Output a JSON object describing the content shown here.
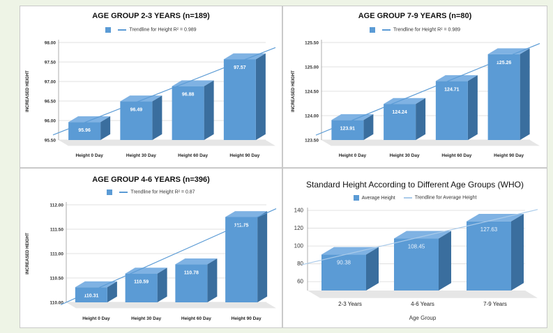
{
  "colors": {
    "bar_front": "#5b9bd5",
    "bar_top": "#7fb2e3",
    "bar_side": "#3a6e9e",
    "trend": "#5b9bd5",
    "trend_who": "#aacbea",
    "grid": "#d9d9d9",
    "floor": "#e6e6e6"
  },
  "chart_data": [
    {
      "type": "bar",
      "title": "AGE GROUP 2-3 YEARS (n=189)",
      "legend": {
        "series_label": "",
        "trend_label": "Trendline for Height  R² = 0.989"
      },
      "ylabel": "INCREASED HEIGHT",
      "xlabel": "",
      "categories": [
        "Height 0 Day",
        "Height 30 Day",
        "Height 60 Day",
        "Height 90 Day"
      ],
      "values": [
        95.96,
        96.49,
        96.88,
        97.57
      ],
      "value_labels": [
        "95.96",
        "96.49",
        "96.88",
        "97.57"
      ],
      "ylim": [
        95.5,
        98.0
      ],
      "yticks": [
        "95.50",
        "96.00",
        "96.50",
        "97.00",
        "97.50",
        "98.00"
      ],
      "trend_start": 95.63,
      "trend_end": 97.87,
      "grid": true
    },
    {
      "type": "bar",
      "title": "AGE GROUP 7-9 YEARS (n=80)",
      "legend": {
        "series_label": "",
        "trend_label": "Trendline for Height  R² = 0.989"
      },
      "ylabel": "INCREASED HEIGHT",
      "xlabel": "",
      "categories": [
        "Height 0 Day",
        "Height 30 Day",
        "Height 60 Day",
        "Height 90 Day"
      ],
      "values": [
        123.91,
        124.24,
        124.71,
        125.26
      ],
      "value_labels": [
        "123.91",
        "124.24",
        "124.71",
        "125.26"
      ],
      "ylim": [
        123.5,
        125.5
      ],
      "yticks": [
        "123.50",
        "124.00",
        "124.50",
        "125.00",
        "125.50"
      ],
      "trend_start": 123.6,
      "trend_end": 125.48,
      "grid": true
    },
    {
      "type": "bar",
      "title": "AGE GROUP 4-6 YEARS (n=396)",
      "legend": {
        "series_label": "",
        "trend_label": "Trendline for Height R² = 0.87"
      },
      "ylabel": "INCREASED HEIGHT",
      "xlabel": "",
      "categories": [
        "Height 0 Day",
        "Height 30 Day",
        "Height 60 Day",
        "Height 90 Day"
      ],
      "values": [
        110.31,
        110.59,
        110.78,
        111.75
      ],
      "value_labels": [
        "110.31",
        "110.59",
        "110.78",
        "111.75"
      ],
      "ylim": [
        110.0,
        112.0
      ],
      "yticks": [
        "110.00",
        "110.50",
        "111.00",
        "111.50",
        "112.00"
      ],
      "trend_start": 109.95,
      "trend_end": 111.92,
      "grid": true
    },
    {
      "type": "bar",
      "title": "Standard Height According to Different Age Groups (WHO)",
      "legend": {
        "series_label": "Average Height",
        "trend_label": "Trendline for Average Height"
      },
      "ylabel": "",
      "xlabel": "Age Group",
      "categories": [
        "2-3 Years",
        "4-6 Years",
        "7-9 Years"
      ],
      "values": [
        90.38,
        108.45,
        127.63
      ],
      "value_labels": [
        "90.38",
        "108.45",
        "127.63"
      ],
      "ylim": [
        50,
        140
      ],
      "yticks": [
        "60",
        "80",
        "100",
        "120",
        "140"
      ],
      "trend_start": 79,
      "trend_end": 141,
      "grid": true
    }
  ]
}
